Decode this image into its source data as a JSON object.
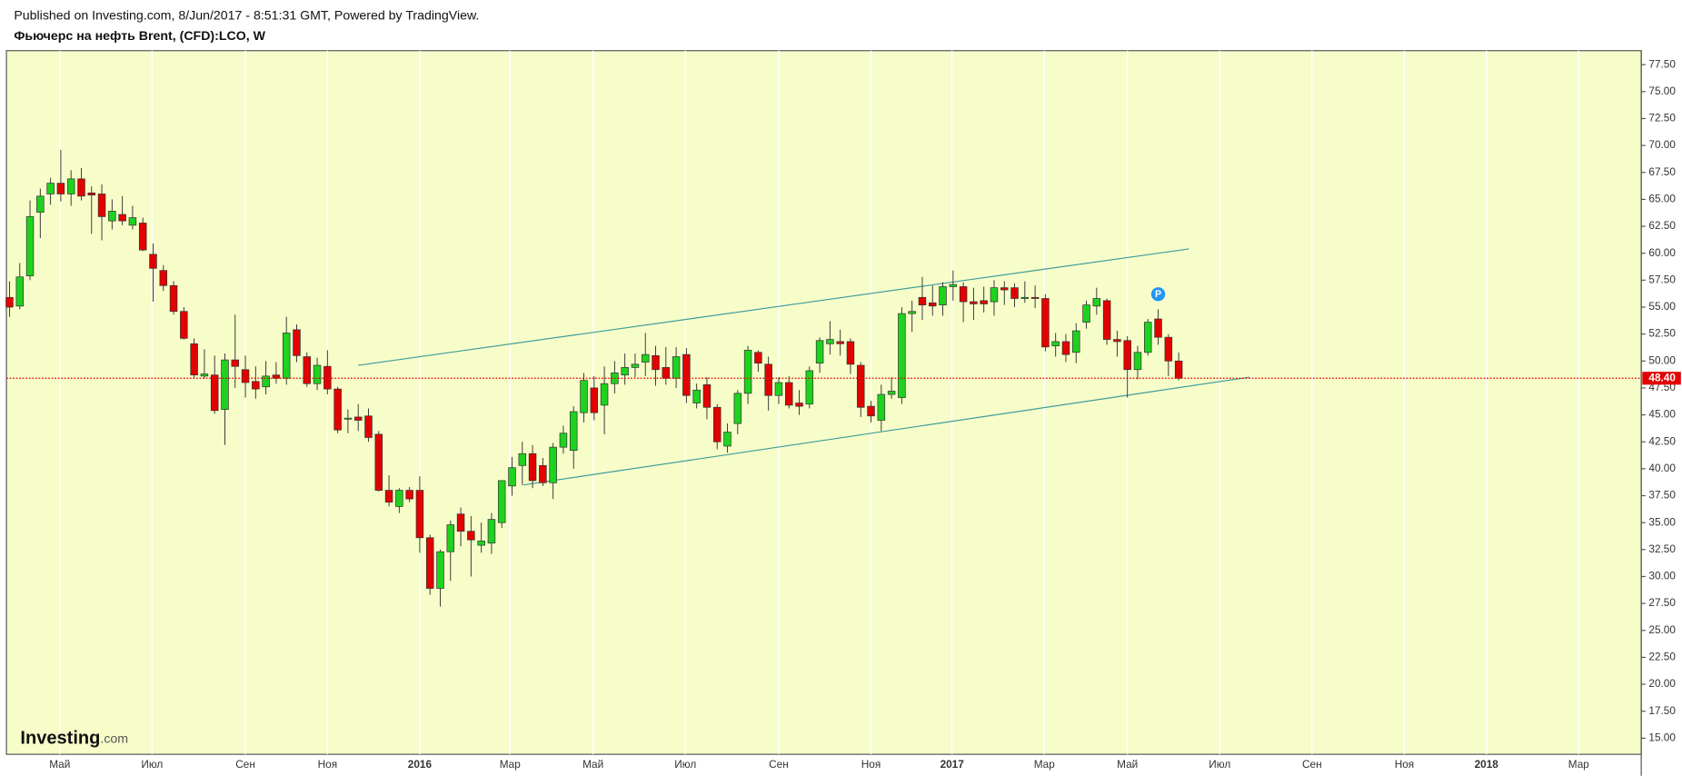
{
  "header": {
    "published": "Published on Investing.com, 8/Jun/2017 - 8:51:31 GMT, Powered by TradingView.",
    "symbol": "Фьючерс на нефть Brent, (CFD):LCO, W"
  },
  "logo": {
    "name": "Investing",
    "suffix": ".com"
  },
  "chart_data": {
    "type": "candlestick",
    "up_color": "#1fd21f",
    "down_color": "#e30000",
    "background": "#f7fdc9",
    "grid": true,
    "open": [
      55.9,
      55.1,
      57.9,
      63.8,
      65.5,
      66.5,
      65.5,
      66.9,
      65.6,
      65.5,
      63.0,
      63.6,
      62.6,
      62.8,
      59.9,
      58.4,
      57.0,
      54.6,
      51.6,
      48.6,
      48.7,
      45.5,
      50.1,
      49.2,
      48.1,
      47.6,
      48.7,
      48.4,
      52.9,
      50.4,
      47.9,
      49.5,
      47.4,
      44.6,
      44.8,
      44.9,
      43.2,
      38.0,
      36.5,
      38.0,
      38.0,
      33.6,
      28.9,
      32.3,
      35.8,
      34.2,
      32.9,
      33.1,
      35.0,
      38.4,
      40.3,
      41.4,
      40.3,
      38.7,
      42.0,
      41.7,
      45.2,
      47.5,
      45.9,
      47.9,
      48.7,
      49.4,
      49.9,
      50.5,
      49.4,
      48.4,
      50.6,
      46.1,
      47.8,
      45.7,
      42.1,
      44.2,
      47.0,
      50.8,
      49.7,
      46.8,
      48.0,
      46.1,
      46.0,
      49.8,
      51.6,
      51.8,
      51.8,
      49.6,
      45.8,
      44.5,
      46.9,
      46.6,
      54.4,
      55.9,
      55.4,
      55.2,
      56.9,
      56.9,
      55.5,
      55.6,
      55.5,
      56.8,
      56.8,
      55.8,
      55.9,
      55.8,
      51.4,
      51.8,
      50.8,
      53.6,
      55.1,
      55.6,
      52.0,
      51.9,
      49.2,
      50.8,
      53.9,
      52.2,
      50.0
    ],
    "high": [
      57.4,
      59.1,
      64.9,
      66.0,
      67.0,
      69.6,
      67.7,
      67.9,
      66.2,
      66.4,
      65.0,
      65.3,
      64.4,
      63.3,
      60.9,
      58.9,
      57.4,
      55.0,
      52.1,
      51.1,
      50.5,
      50.7,
      54.3,
      50.5,
      49.5,
      50.0,
      49.9,
      54.1,
      53.4,
      50.8,
      50.3,
      51.0,
      47.6,
      45.5,
      46.0,
      45.6,
      43.5,
      39.4,
      38.2,
      38.3,
      39.3,
      33.9,
      32.5,
      35.2,
      36.4,
      35.6,
      35.0,
      35.9,
      38.9,
      41.1,
      42.5,
      42.2,
      41.0,
      42.4,
      44.0,
      45.8,
      48.9,
      48.6,
      49.5,
      50.0,
      50.7,
      50.7,
      52.6,
      51.4,
      51.3,
      51.3,
      51.2,
      47.9,
      48.5,
      46.0,
      44.2,
      47.3,
      51.4,
      51.0,
      50.4,
      48.5,
      48.6,
      47.3,
      49.5,
      52.2,
      53.7,
      52.9,
      52.1,
      49.9,
      46.3,
      47.8,
      48.5,
      55.0,
      55.6,
      57.8,
      57.0,
      57.3,
      58.4,
      57.3,
      56.8,
      56.9,
      57.5,
      57.4,
      57.2,
      57.4,
      57.0,
      56.2,
      52.6,
      52.5,
      53.5,
      55.6,
      56.8,
      55.8,
      52.8,
      52.3,
      51.4,
      53.9,
      54.8,
      52.5,
      50.8
    ],
    "low": [
      54.1,
      54.8,
      57.5,
      61.4,
      64.5,
      64.8,
      64.4,
      64.9,
      61.8,
      61.2,
      62.2,
      62.6,
      62.2,
      60.2,
      55.5,
      56.5,
      54.3,
      52.0,
      48.4,
      48.4,
      45.1,
      42.2,
      47.5,
      46.6,
      46.5,
      46.9,
      47.9,
      47.8,
      49.9,
      47.6,
      47.3,
      46.9,
      43.3,
      43.3,
      43.5,
      42.5,
      37.9,
      36.5,
      35.9,
      36.9,
      32.2,
      28.3,
      27.2,
      29.6,
      32.8,
      30.0,
      32.2,
      32.1,
      34.5,
      37.5,
      38.5,
      38.2,
      38.4,
      37.2,
      41.4,
      40.0,
      44.3,
      44.5,
      43.2,
      47.0,
      47.8,
      48.5,
      48.6,
      47.7,
      47.8,
      47.5,
      46.1,
      45.6,
      44.6,
      41.8,
      41.5,
      43.2,
      46.0,
      49.0,
      45.4,
      46.0,
      45.6,
      45.0,
      45.6,
      48.9,
      50.6,
      50.5,
      48.8,
      44.8,
      44.3,
      43.5,
      46.5,
      46.0,
      52.7,
      53.8,
      54.2,
      54.2,
      55.6,
      53.6,
      53.8,
      54.5,
      54.2,
      55.2,
      55.0,
      55.4,
      54.9,
      50.9,
      50.4,
      49.9,
      49.8,
      53.0,
      54.3,
      51.5,
      50.4,
      46.6,
      48.3,
      50.5,
      51.5,
      48.6,
      48.2
    ],
    "close": [
      55.0,
      57.8,
      63.4,
      65.3,
      66.5,
      65.5,
      66.9,
      65.3,
      65.4,
      63.4,
      63.9,
      63.0,
      63.3,
      60.3,
      58.6,
      57.0,
      54.6,
      52.1,
      48.7,
      48.8,
      45.4,
      50.1,
      49.5,
      48.0,
      47.4,
      48.6,
      48.4,
      52.6,
      50.5,
      47.9,
      49.6,
      47.4,
      43.6,
      44.7,
      44.5,
      42.9,
      38.0,
      36.9,
      38.0,
      37.2,
      33.6,
      28.9,
      32.3,
      34.8,
      34.2,
      33.4,
      33.3,
      35.3,
      38.9,
      40.1,
      41.4,
      38.9,
      38.7,
      42.0,
      43.3,
      45.3,
      48.2,
      45.2,
      47.9,
      48.9,
      49.4,
      49.7,
      50.6,
      49.2,
      48.4,
      50.4,
      46.8,
      47.3,
      45.7,
      42.5,
      43.4,
      47.0,
      51.0,
      49.8,
      46.8,
      48.0,
      45.9,
      45.8,
      49.1,
      51.9,
      52.0,
      51.6,
      49.7,
      45.7,
      44.9,
      46.9,
      47.2,
      54.4,
      54.6,
      55.2,
      55.1,
      56.9,
      57.1,
      55.5,
      55.3,
      55.3,
      56.8,
      56.6,
      55.8,
      55.9,
      55.8,
      51.3,
      51.8,
      50.6,
      52.8,
      55.2,
      55.8,
      52.0,
      51.8,
      49.2,
      50.8,
      53.6,
      52.2,
      50.0,
      48.4
    ],
    "xlim": [
      -0.3,
      159.1
    ],
    "xticks": [
      {
        "value": 4.9,
        "label": "Май"
      },
      {
        "value": 13.9,
        "label": "Июл"
      },
      {
        "value": 23.0,
        "label": "Сен"
      },
      {
        "value": 31.0,
        "label": "Ноя"
      },
      {
        "value": 40.0,
        "label": "2016"
      },
      {
        "value": 48.8,
        "label": "Мар"
      },
      {
        "value": 56.9,
        "label": "Май"
      },
      {
        "value": 65.9,
        "label": "Июл"
      },
      {
        "value": 75.0,
        "label": "Сен"
      },
      {
        "value": 84.0,
        "label": "Ноя"
      },
      {
        "value": 91.9,
        "label": "2017"
      },
      {
        "value": 100.9,
        "label": "Мар"
      },
      {
        "value": 109.0,
        "label": "Май"
      },
      {
        "value": 118.0,
        "label": "Июл"
      },
      {
        "value": 127.0,
        "label": "Сен"
      },
      {
        "value": 136.0,
        "label": "Ноя"
      },
      {
        "value": 144.0,
        "label": "2018"
      },
      {
        "value": 153.0,
        "label": "Мар"
      }
    ],
    "ylim": [
      13.5,
      78.8
    ],
    "yticks": [
      {
        "value": 15,
        "label": "15.00"
      },
      {
        "value": 17.5,
        "label": "17.50"
      },
      {
        "value": 20,
        "label": "20.00"
      },
      {
        "value": 22.5,
        "label": "22.50"
      },
      {
        "value": 25,
        "label": "25.00"
      },
      {
        "value": 27.5,
        "label": "27.50"
      },
      {
        "value": 30,
        "label": "30.00"
      },
      {
        "value": 32.5,
        "label": "32.50"
      },
      {
        "value": 35,
        "label": "35.00"
      },
      {
        "value": 37.5,
        "label": "37.50"
      },
      {
        "value": 40,
        "label": "40.00"
      },
      {
        "value": 42.5,
        "label": "42.50"
      },
      {
        "value": 45,
        "label": "45.00"
      },
      {
        "value": 47.5,
        "label": "47.50"
      },
      {
        "value": 50,
        "label": "50.00"
      },
      {
        "value": 52.5,
        "label": "52.50"
      },
      {
        "value": 55,
        "label": "55.00"
      },
      {
        "value": 57.5,
        "label": "57.50"
      },
      {
        "value": 60,
        "label": "60.00"
      },
      {
        "value": 62.5,
        "label": "62.50"
      },
      {
        "value": 65,
        "label": "65.00"
      },
      {
        "value": 67.5,
        "label": "67.50"
      },
      {
        "value": 70,
        "label": "70.00"
      },
      {
        "value": 72.5,
        "label": "72.50"
      },
      {
        "value": 75,
        "label": "75.00"
      },
      {
        "value": 77.5,
        "label": "77.50"
      }
    ],
    "last_price": {
      "value": 48.4,
      "label": "48.40",
      "color": "#e30000"
    },
    "trendlines": [
      {
        "x": [
          34.0,
          115.0
        ],
        "y": [
          49.6,
          60.4
        ],
        "color": "#3f9c9c"
      },
      {
        "x": [
          50.1,
          120.9
        ],
        "y": [
          38.5,
          48.5
        ],
        "color": "#3f9c9c"
      }
    ],
    "markers": [
      {
        "x": 112.0,
        "y": 56.2,
        "label": "P",
        "color": "#2196f3"
      }
    ]
  }
}
